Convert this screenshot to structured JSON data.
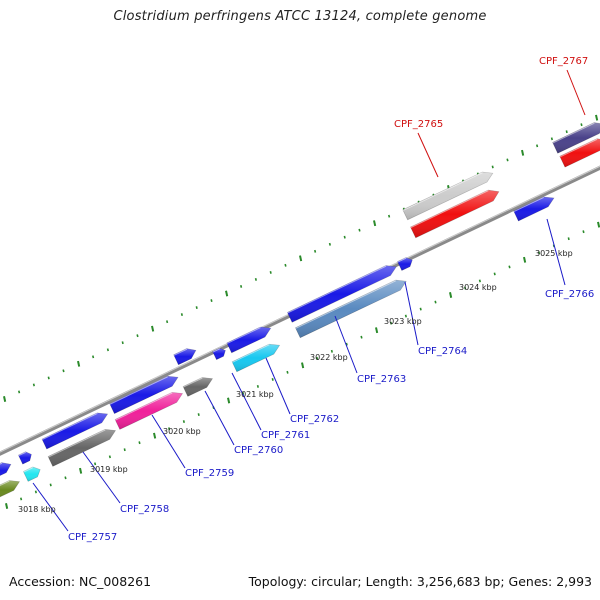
{
  "title": "Clostridium perfringens ATCC 13124, complete genome",
  "footer": {
    "accession": "Accession: NC_008261",
    "topology": "Topology: circular; Length: 3,256,683 bp; Genes: 2,993"
  },
  "colors": {
    "backbone": "#8a8a8a",
    "tick": "#2a8a2a",
    "label_default": "#1a1ac8",
    "label_highlight": "#d01010"
  },
  "kbp_labels": [
    "3018 kbp",
    "3019 kbp",
    "3020 kbp",
    "3021 kbp",
    "3022 kbp",
    "3023 kbp",
    "3024 kbp",
    "3025 kbp"
  ],
  "genes": [
    {
      "name": "CPF_2757",
      "color": "#1a1ac8"
    },
    {
      "name": "CPF_2758",
      "color": "#1a1ac8"
    },
    {
      "name": "CPF_2759",
      "color": "#1a1ac8"
    },
    {
      "name": "CPF_2760",
      "color": "#1a1ac8"
    },
    {
      "name": "CPF_2761",
      "color": "#1a1ac8"
    },
    {
      "name": "CPF_2762",
      "color": "#1a1ac8"
    },
    {
      "name": "CPF_2763",
      "color": "#1a1ac8"
    },
    {
      "name": "CPF_2764",
      "color": "#1a1ac8"
    },
    {
      "name": "CPF_2765",
      "color": "#d01010"
    },
    {
      "name": "CPF_2766",
      "color": "#1a1ac8"
    },
    {
      "name": "CPF_2767",
      "color": "#d01010"
    }
  ]
}
